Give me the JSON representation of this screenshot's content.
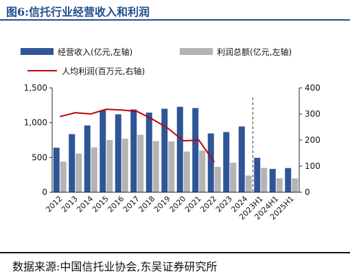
{
  "header": {
    "title": "图6:信托行业经营收入和利润"
  },
  "footer": {
    "source": "数据来源:中国信托业协会,东吴证券研究所"
  },
  "colors": {
    "revenue": "#2f5597",
    "profit": "#b4b4b4",
    "per_capita": "#c00000",
    "title": "#1f4e8c"
  },
  "chart_data": {
    "type": "bar",
    "categories": [
      "2012",
      "2013",
      "2014",
      "2015",
      "2016",
      "2017",
      "2018",
      "2019",
      "2020",
      "2021",
      "2022",
      "2023",
      "2024",
      "2023H1",
      "2024H1",
      "2025H1"
    ],
    "legend": [
      "经营收入(亿元,左轴)",
      "利润总额(亿元,左轴)",
      "人均利润(百万元,右轴)"
    ],
    "series": [
      {
        "name": "经营收入(亿元,左轴)",
        "type": "bar",
        "axis": "left",
        "values": [
          640,
          835,
          960,
          1180,
          1120,
          1190,
          1145,
          1200,
          1228,
          1210,
          845,
          865,
          945,
          495,
          335,
          348
        ]
      },
      {
        "name": "利润总额(亿元,左轴)",
        "type": "bar",
        "axis": "left",
        "values": [
          440,
          555,
          645,
          750,
          770,
          825,
          735,
          730,
          585,
          600,
          365,
          425,
          240,
          350,
          200,
          200
        ]
      },
      {
        "name": "人均利润(百万元,右轴)",
        "type": "line",
        "axis": "right",
        "values": [
          290,
          305,
          300,
          318,
          315,
          310,
          280,
          245,
          197,
          200,
          115,
          null,
          null,
          null,
          null,
          null
        ]
      }
    ],
    "y_left": {
      "min": 0,
      "max": 1500,
      "ticks": [
        0,
        500,
        1000,
        1500
      ],
      "tick_labels": [
        "0",
        "500",
        "1,000",
        "1,500"
      ]
    },
    "y_right": {
      "min": 0,
      "max": 400,
      "ticks": [
        0,
        100,
        200,
        300,
        400
      ],
      "tick_labels": [
        "0",
        "100",
        "200",
        "300",
        "400"
      ]
    },
    "divider_after": "2024",
    "grid": false,
    "legend_position": "top"
  }
}
